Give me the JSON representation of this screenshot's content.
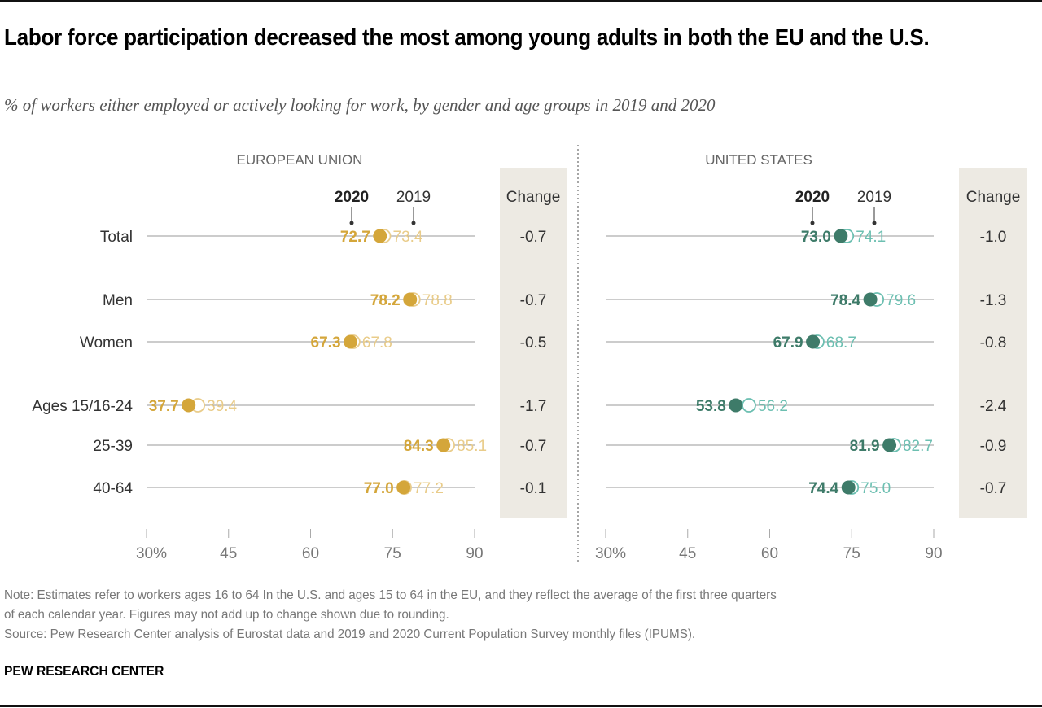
{
  "title": "Labor force participation decreased the most among young adults in both the EU and the U.S.",
  "subtitle": "% of workers either employed or actively looking for work, by gender and age groups in 2019 and 2020",
  "note_line1": "Note: Estimates refer to workers ages 16 to 64 In the U.S. and ages 15 to 64 in the EU, and they reflect the average of the first three quarters",
  "note_line2": "of each calendar year. Figures may not add up to change shown due to rounding.",
  "source": "Source: Pew Research Center analysis of Eurostat data and 2019 and 2020 Current Population Survey monthly files (IPUMS).",
  "brand": "PEW RESEARCH CENTER",
  "colors": {
    "eu_2020": "#D4A63A",
    "eu_2019": "#E9CC8A",
    "us_2020": "#3E7B69",
    "us_2019": "#6CBFB1",
    "change_bg": "#EDEAE3",
    "line": "#999999"
  },
  "chart_data": [
    {
      "type": "dot-plot",
      "panel_title": "EUROPEAN UNION",
      "legend": {
        "current": "2020",
        "previous": "2019"
      },
      "change_header": "Change",
      "categories": [
        "Total",
        "Men",
        "Women",
        "Ages 15/16-24",
        "25-39",
        "40-64"
      ],
      "series": [
        {
          "name": "2020",
          "values": [
            72.7,
            78.2,
            67.3,
            37.7,
            84.3,
            77.0
          ],
          "labels": [
            "72.7",
            "78.2",
            "67.3",
            "37.7",
            "84.3",
            "77.0"
          ]
        },
        {
          "name": "2019",
          "values": [
            73.4,
            78.8,
            67.8,
            39.4,
            85.1,
            77.2
          ],
          "labels": [
            "73.4",
            "78.8",
            "67.8",
            "39.4",
            "85.1",
            "77.2"
          ]
        }
      ],
      "change": [
        "-0.7",
        "-0.7",
        "-0.5",
        "-1.7",
        "-0.7",
        "-0.1"
      ],
      "xlim": [
        30,
        90
      ],
      "xticks": [
        "30%",
        "45",
        "60",
        "75",
        "90"
      ],
      "xtick_values": [
        30,
        45,
        60,
        75,
        90
      ],
      "grid": false
    },
    {
      "type": "dot-plot",
      "panel_title": "UNITED STATES",
      "legend": {
        "current": "2020",
        "previous": "2019"
      },
      "change_header": "Change",
      "categories": [
        "Total",
        "Men",
        "Women",
        "Ages 15/16-24",
        "25-39",
        "40-64"
      ],
      "series": [
        {
          "name": "2020",
          "values": [
            73.0,
            78.4,
            67.9,
            53.8,
            81.9,
            74.4
          ],
          "labels": [
            "73.0",
            "78.4",
            "67.9",
            "53.8",
            "81.9",
            "74.4"
          ]
        },
        {
          "name": "2019",
          "values": [
            74.1,
            79.6,
            68.7,
            56.2,
            82.7,
            75.0
          ],
          "labels": [
            "74.1",
            "79.6",
            "68.7",
            "56.2",
            "82.7",
            "75.0"
          ]
        }
      ],
      "change": [
        "-1.0",
        "-1.3",
        "-0.8",
        "-2.4",
        "-0.9",
        "-0.7"
      ],
      "xlim": [
        30,
        90
      ],
      "xticks": [
        "30%",
        "45",
        "60",
        "75",
        "90"
      ],
      "xtick_values": [
        30,
        45,
        60,
        75,
        90
      ],
      "grid": false
    }
  ]
}
